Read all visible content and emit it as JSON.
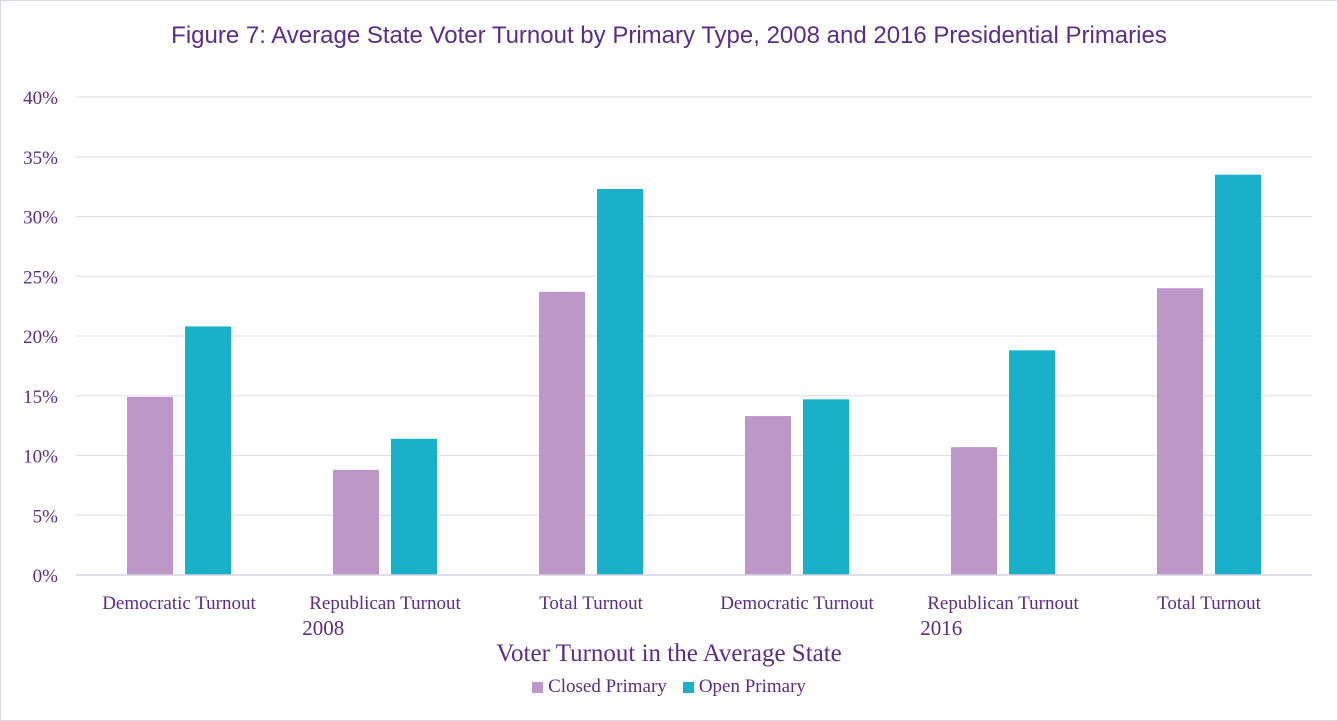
{
  "chart_data": {
    "type": "bar",
    "title": "Figure 7: Average State Voter Turnout  by Primary Type, 2008 and 2016 Presidential Primaries",
    "xlabel": "Voter Turnout in the Average State",
    "ylabel": "",
    "ylim": [
      0,
      40
    ],
    "yticks": [
      "0%",
      "5%",
      "10%",
      "15%",
      "20%",
      "25%",
      "30%",
      "35%",
      "40%"
    ],
    "grid": true,
    "legend_position": "bottom",
    "categories": [
      "Democratic Turnout",
      "Republican Turnout",
      "Total Turnout",
      "Democratic Turnout",
      "Republican Turnout",
      "Total Turnout"
    ],
    "groups": [
      "2008",
      "2016"
    ],
    "series": [
      {
        "name": "Closed Primary",
        "color": "#bd97c8",
        "values": [
          14.9,
          8.8,
          23.7,
          13.3,
          10.7,
          24.0
        ]
      },
      {
        "name": "Open Primary",
        "color": "#18b1c9",
        "values": [
          20.8,
          11.4,
          32.3,
          14.7,
          18.8,
          33.5
        ]
      }
    ]
  }
}
